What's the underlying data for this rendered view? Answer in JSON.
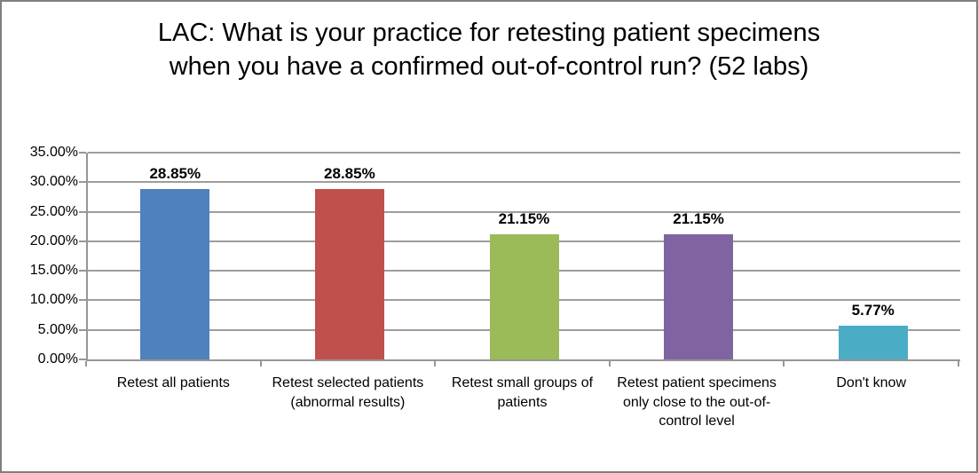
{
  "frame": {
    "background": "#ffffff",
    "border_color": "#7f7f7f"
  },
  "chart_data": {
    "type": "bar",
    "title": "LAC: What is your practice for retesting patient specimens when you have a confirmed out-of-control run? (52 labs)",
    "categories": [
      "Retest all patients",
      "Retest selected patients (abnormal results)",
      "Retest small groups of patients",
      "Retest patient specimens only close to the out-of-control level",
      "Don't know"
    ],
    "values": [
      28.85,
      28.85,
      21.15,
      21.15,
      5.77
    ],
    "data_labels": [
      "28.85%",
      "28.85%",
      "21.15%",
      "21.15%",
      "5.77%"
    ],
    "bar_colors": [
      "#4f81bd",
      "#c0504d",
      "#9bbb59",
      "#8064a2",
      "#4bacc6"
    ],
    "xlabel": "",
    "ylabel": "",
    "ylim": [
      0,
      35
    ],
    "ytick_step": 5,
    "ytick_labels": [
      "0.00%",
      "5.00%",
      "10.00%",
      "15.00%",
      "20.00%",
      "25.00%",
      "30.00%",
      "35.00%"
    ],
    "grid": "horizontal-on",
    "gridline_color": "#9d9d9d",
    "axis_color": "#969696",
    "legend_position": "none"
  }
}
